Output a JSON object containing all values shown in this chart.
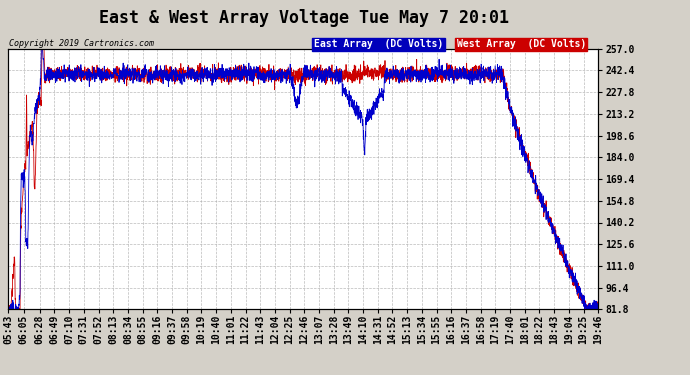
{
  "title": "East & West Array Voltage Tue May 7 20:01",
  "copyright": "Copyright 2019 Cartronics.com",
  "legend_east": "East Array  (DC Volts)",
  "legend_west": "West Array  (DC Volts)",
  "east_color": "#0000cc",
  "west_color": "#cc0000",
  "legend_east_bg": "#0000bb",
  "legend_west_bg": "#cc0000",
  "ylim": [
    81.8,
    257.0
  ],
  "yticks": [
    257.0,
    242.4,
    227.8,
    213.2,
    198.6,
    184.0,
    169.4,
    154.8,
    140.2,
    125.6,
    111.0,
    96.4,
    81.8
  ],
  "background_color": "#d4d0c8",
  "plot_bg": "#ffffff",
  "grid_color": "#aaaaaa",
  "title_fontsize": 12,
  "tick_fontsize": 7,
  "xtick_labels": [
    "05:43",
    "06:05",
    "06:28",
    "06:49",
    "07:10",
    "07:31",
    "07:52",
    "08:13",
    "08:34",
    "08:55",
    "09:16",
    "09:37",
    "09:58",
    "10:19",
    "10:40",
    "11:01",
    "11:22",
    "11:43",
    "12:04",
    "12:25",
    "12:46",
    "13:07",
    "13:28",
    "13:49",
    "14:10",
    "14:31",
    "14:52",
    "15:13",
    "15:34",
    "15:55",
    "16:16",
    "16:37",
    "16:58",
    "17:19",
    "17:40",
    "18:01",
    "18:22",
    "18:43",
    "19:04",
    "19:25",
    "19:46"
  ]
}
